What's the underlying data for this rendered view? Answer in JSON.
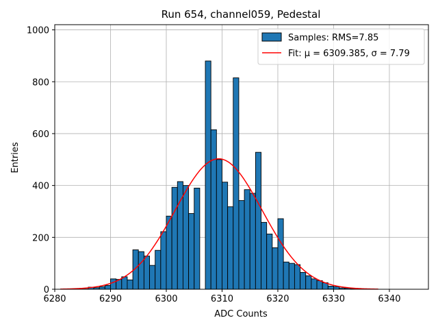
{
  "chart_data": {
    "type": "bar",
    "title": "Run 654, channel059, Pedestal",
    "xlabel": "ADC Counts",
    "ylabel": "Entries",
    "xlim": [
      6280,
      6347
    ],
    "ylim": [
      0,
      1020
    ],
    "xticks": [
      6280,
      6290,
      6300,
      6310,
      6320,
      6330,
      6340
    ],
    "yticks": [
      0,
      200,
      400,
      600,
      800,
      1000
    ],
    "grid": true,
    "legend_position": "top-right",
    "histogram": {
      "name": "Samples",
      "legend_label": "Samples: RMS=7.85",
      "color": "#1f77b4",
      "edge_color": "#000000",
      "bin_start": 6281,
      "bin_width": 1,
      "values": [
        0,
        0,
        0,
        1,
        1,
        8,
        6,
        10,
        15,
        40,
        38,
        48,
        36,
        152,
        145,
        128,
        92,
        150,
        222,
        282,
        393,
        415,
        400,
        292,
        390,
        0,
        880,
        615,
        500,
        413,
        318,
        815,
        342,
        384,
        370,
        528,
        258,
        213,
        160,
        272,
        105,
        100,
        95,
        65,
        52,
        40,
        33,
        25,
        12,
        10,
        5,
        4,
        2,
        2,
        1,
        1,
        0,
        0,
        0,
        0,
        0,
        0,
        0
      ]
    },
    "fit": {
      "name": "Fit",
      "legend_label": "Fit: μ = 6309.385, σ = 7.79",
      "color": "#ff0000",
      "mu": 6309.385,
      "sigma": 7.79,
      "amplitude": 503,
      "x_range": [
        6281,
        6338
      ]
    }
  }
}
